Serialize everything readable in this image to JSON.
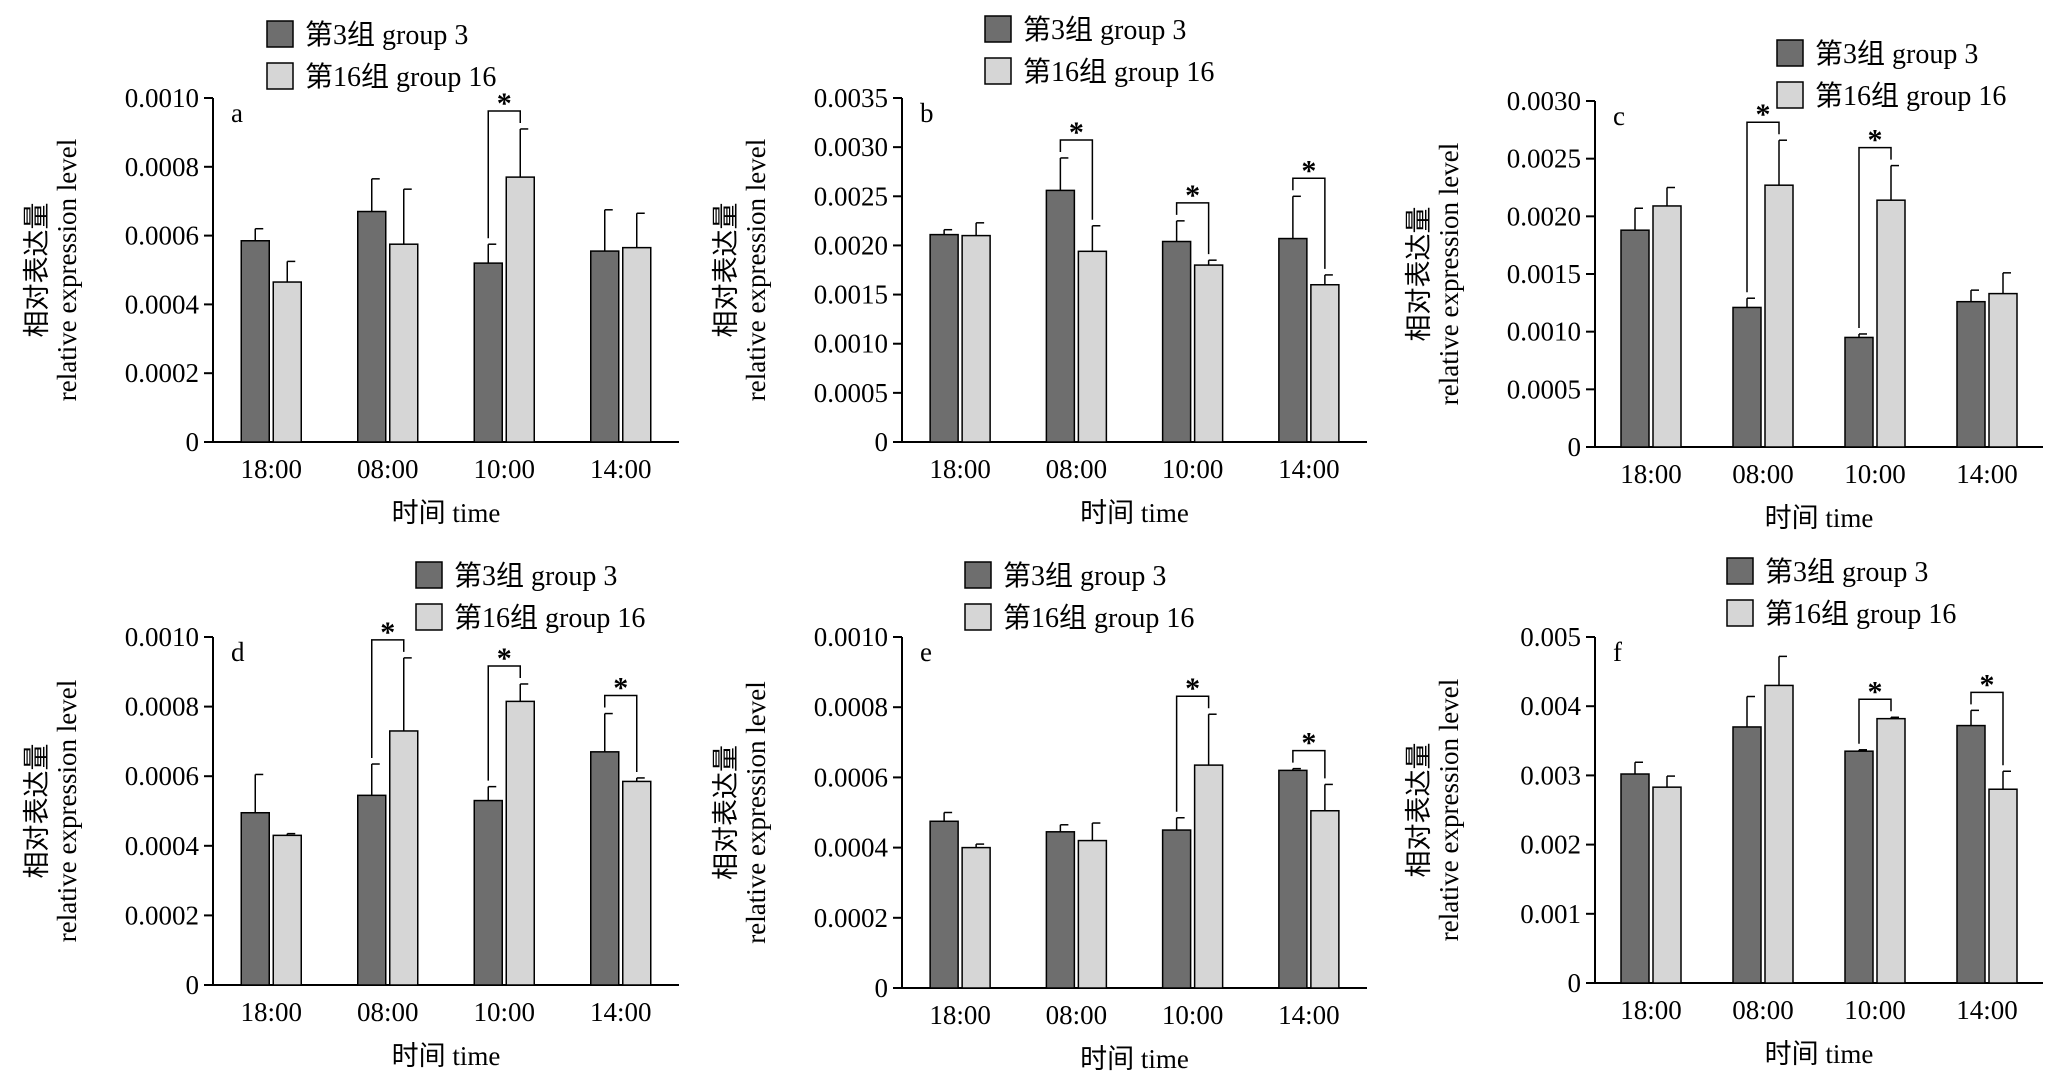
{
  "colors": {
    "group3": "#6e6e6e",
    "group16": "#d6d6d6",
    "stroke": "#000000"
  },
  "chart_data": [
    {
      "type": "bar",
      "panel": "a",
      "categories": [
        "18:00",
        "08:00",
        "10:00",
        "14:00"
      ],
      "series": [
        {
          "name": "第3组 group 3",
          "values": [
            0.000585,
            0.00067,
            0.00052,
            0.000555
          ],
          "errors": [
            3.5e-05,
            9.5e-05,
            5.5e-05,
            0.00012
          ]
        },
        {
          "name": "第16组 group 16",
          "values": [
            0.000465,
            0.000575,
            0.00077,
            0.000565
          ],
          "errors": [
            6e-05,
            0.00016,
            0.00014,
            0.0001
          ]
        }
      ],
      "ylim": [
        0,
        0.001
      ],
      "yticks": [
        "0",
        "0.0002",
        "0.0004",
        "0.0006",
        "0.0008",
        "0.0010"
      ],
      "ytick_values": [
        0,
        0.0002,
        0.0004,
        0.0006,
        0.0008,
        0.001
      ],
      "xlabel": "时间 time",
      "ylabel_cn": "相对表达量",
      "ylabel_en": "relative expression level",
      "significance": [
        2
      ],
      "legend_position": "top"
    },
    {
      "type": "bar",
      "panel": "b",
      "categories": [
        "18:00",
        "08:00",
        "10:00",
        "14:00"
      ],
      "series": [
        {
          "name": "第3组 group 3",
          "values": [
            0.00211,
            0.00256,
            0.00204,
            0.00207
          ],
          "errors": [
            5e-05,
            0.00033,
            0.00021,
            0.00043
          ]
        },
        {
          "name": "第16组 group 16",
          "values": [
            0.0021,
            0.00194,
            0.0018,
            0.0016
          ],
          "errors": [
            0.00013,
            0.00026,
            5e-05,
            0.0001
          ]
        }
      ],
      "ylim": [
        0,
        0.0035
      ],
      "yticks": [
        "0",
        "0.0005",
        "0.0010",
        "0.0015",
        "0.0020",
        "0.0025",
        "0.0030",
        "0.0035"
      ],
      "ytick_values": [
        0,
        0.0005,
        0.001,
        0.0015,
        0.002,
        0.0025,
        0.003,
        0.0035
      ],
      "xlabel": "时间 time",
      "ylabel_cn": "相对表达量",
      "ylabel_en": "relative expression level",
      "significance": [
        1,
        2,
        3
      ],
      "legend_position": "top"
    },
    {
      "type": "bar",
      "panel": "c",
      "categories": [
        "18:00",
        "08:00",
        "10:00",
        "14:00"
      ],
      "series": [
        {
          "name": "第3组 group 3",
          "values": [
            0.00188,
            0.00121,
            0.00095,
            0.00126
          ],
          "errors": [
            0.00019,
            8e-05,
            3e-05,
            0.0001
          ]
        },
        {
          "name": "第16组 group 16",
          "values": [
            0.00209,
            0.00227,
            0.00214,
            0.00133
          ],
          "errors": [
            0.00016,
            0.00039,
            0.0003,
            0.00018
          ]
        }
      ],
      "ylim": [
        0,
        0.003
      ],
      "yticks": [
        "0",
        "0.0005",
        "0.0010",
        "0.0015",
        "0.0020",
        "0.0025",
        "0.0030"
      ],
      "ytick_values": [
        0,
        0.0005,
        0.001,
        0.0015,
        0.002,
        0.0025,
        0.003
      ],
      "xlabel": "时间 time",
      "ylabel_cn": "相对表达量",
      "ylabel_en": "relative expression level",
      "significance": [
        1,
        2
      ],
      "legend_position": "top-right"
    },
    {
      "type": "bar",
      "panel": "d",
      "categories": [
        "18:00",
        "08:00",
        "10:00",
        "14:00"
      ],
      "series": [
        {
          "name": "第3组 group 3",
          "values": [
            0.000495,
            0.000545,
            0.00053,
            0.00067
          ],
          "errors": [
            0.00011,
            9e-05,
            4e-05,
            0.00011
          ]
        },
        {
          "name": "第16组 group 16",
          "values": [
            0.00043,
            0.00073,
            0.000815,
            0.000585
          ],
          "errors": [
            5e-06,
            0.00021,
            5e-05,
            1e-05
          ]
        }
      ],
      "ylim": [
        0,
        0.001
      ],
      "yticks": [
        "0",
        "0.0002",
        "0.0004",
        "0.0006",
        "0.0008",
        "0.0010"
      ],
      "ytick_values": [
        0,
        0.0002,
        0.0004,
        0.0006,
        0.0008,
        0.001
      ],
      "xlabel": "时间 time",
      "ylabel_cn": "相对表达量",
      "ylabel_en": "relative expression level",
      "significance": [
        1,
        2,
        3
      ],
      "legend_position": "top-right"
    },
    {
      "type": "bar",
      "panel": "e",
      "categories": [
        "18:00",
        "08:00",
        "10:00",
        "14:00"
      ],
      "series": [
        {
          "name": "第3组 group 3",
          "values": [
            0.000475,
            0.000445,
            0.00045,
            0.00062
          ],
          "errors": [
            2.5e-05,
            2e-05,
            3.5e-05,
            5e-06
          ]
        },
        {
          "name": "第16组 group 16",
          "values": [
            0.0004,
            0.00042,
            0.000635,
            0.000505
          ],
          "errors": [
            1e-05,
            5e-05,
            0.000145,
            7.5e-05
          ]
        }
      ],
      "ylim": [
        0,
        0.001
      ],
      "yticks": [
        "0",
        "0.0002",
        "0.0004",
        "0.0006",
        "0.0008",
        "0.0010"
      ],
      "ytick_values": [
        0,
        0.0002,
        0.0004,
        0.0006,
        0.0008,
        0.001
      ],
      "xlabel": "时间 time",
      "ylabel_cn": "相对表达量",
      "ylabel_en": "relative expression level",
      "significance": [
        2,
        3
      ],
      "legend_position": "top"
    },
    {
      "type": "bar",
      "panel": "f",
      "categories": [
        "18:00",
        "08:00",
        "10:00",
        "14:00"
      ],
      "series": [
        {
          "name": "第3组 group 3",
          "values": [
            0.00302,
            0.0037,
            0.00335,
            0.00372
          ],
          "errors": [
            0.00017,
            0.00044,
            2e-05,
            0.00022
          ]
        },
        {
          "name": "第16组 group 16",
          "values": [
            0.00283,
            0.0043,
            0.00382,
            0.0028
          ],
          "errors": [
            0.00016,
            0.00042,
            2e-05,
            0.00026
          ]
        }
      ],
      "ylim": [
        0,
        0.005
      ],
      "yticks": [
        "0",
        "0.001",
        "0.002",
        "0.003",
        "0.004",
        "0.005"
      ],
      "ytick_values": [
        0,
        0.001,
        0.002,
        0.003,
        0.004,
        0.005
      ],
      "xlabel": "时间 time",
      "ylabel_cn": "相对表达量",
      "ylabel_en": "relative expression level",
      "significance": [
        2,
        3
      ],
      "legend_position": "top-right"
    }
  ]
}
